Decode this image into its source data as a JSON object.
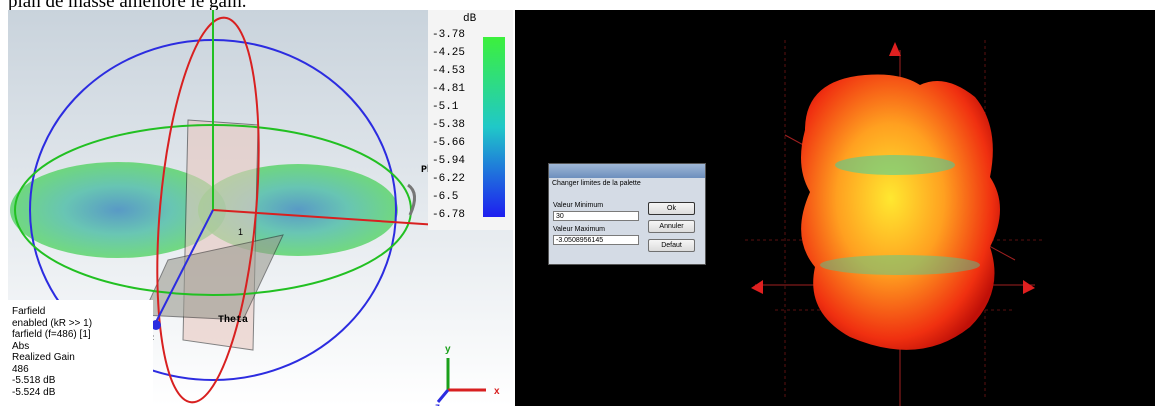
{
  "caption": "plan de masse améliore le gain.",
  "left_view": {
    "colorbar": {
      "unit": "dB",
      "labels": [
        "-3.78",
        "-4.25",
        "-4.53",
        "-4.81",
        "-5.1",
        "-5.38",
        "-5.66",
        "-5.94",
        "-6.22",
        "-6.5",
        "-6.78"
      ]
    },
    "axis_labels": {
      "phi": "Phi",
      "theta": "Theta",
      "x_far": "x",
      "x": "x",
      "y": "y",
      "z": "z",
      "z_small": "z",
      "port": "1"
    },
    "info": [
      "Farfield",
      "enabled (kR >> 1)",
      "farfield (f=486) [1]",
      "Abs",
      "Realized Gain",
      "486",
      "-5.518 dB",
      "-5.524 dB"
    ]
  },
  "dialog": {
    "title": "Changer limites de la palette",
    "min_label": "Valeur Minimum",
    "min_value": "30",
    "max_label": "Valeur Maximum",
    "max_value": "-3.0508956145",
    "buttons": [
      "Ok",
      "Annuler",
      "Defaut"
    ]
  }
}
